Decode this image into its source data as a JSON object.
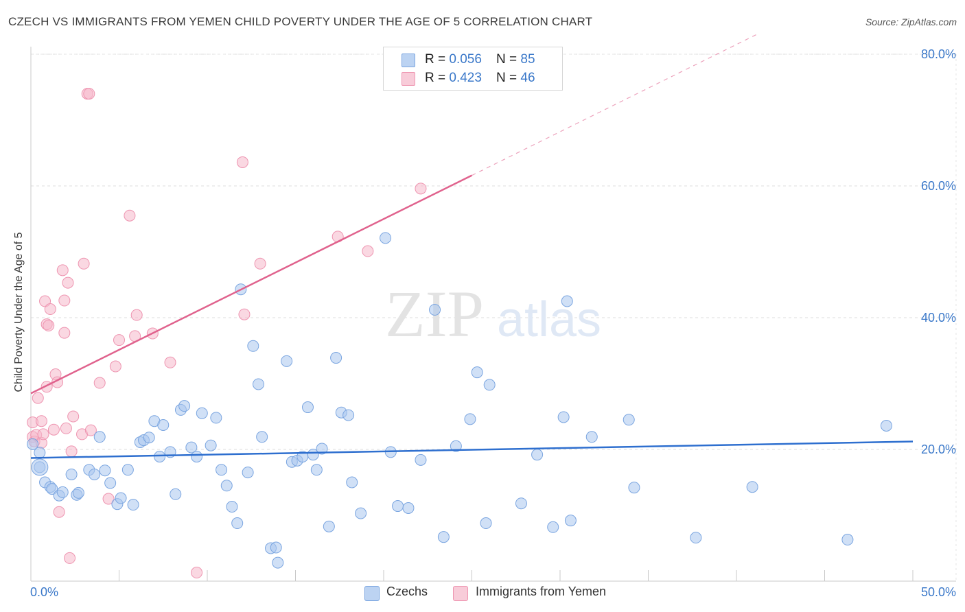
{
  "title": "CZECH VS IMMIGRANTS FROM YEMEN CHILD POVERTY UNDER THE AGE OF 5 CORRELATION CHART",
  "source": "Source: ZipAtlas.com",
  "watermark": {
    "zip": "ZIP",
    "atlas": "atlas"
  },
  "colors": {
    "czech_fill": "#a9c6ee",
    "czech_stroke": "#7aa5e0",
    "czech_line": "#2e6fcf",
    "yemen_fill": "#f5b8cb",
    "yemen_stroke": "#ee94b0",
    "yemen_line": "#e0628d",
    "axis_text": "#3a78c9",
    "grid": "#dddddd"
  },
  "legend": {
    "czech": {
      "r_label": "R = ",
      "r_value": "0.056",
      "n_label": "N = ",
      "n_value": "85"
    },
    "yemen": {
      "r_label": "R = ",
      "r_value": "0.423",
      "n_label": "N = ",
      "n_value": "46"
    }
  },
  "bottom_legend": {
    "czech": "Czechs",
    "yemen": "Immigrants from Yemen"
  },
  "chart_data": {
    "type": "scatter",
    "title": "CZECH VS IMMIGRANTS FROM YEMEN CHILD POVERTY UNDER THE AGE OF 5 CORRELATION CHART",
    "xlabel": "",
    "ylabel": "Child Poverty Under the Age of 5",
    "xlim": [
      0,
      50
    ],
    "ylim": [
      0,
      80
    ],
    "x_tick_labels": [
      "0.0%",
      "50.0%"
    ],
    "y_ticks": [
      20,
      40,
      60,
      80
    ],
    "y_tick_labels": [
      "20.0%",
      "40.0%",
      "60.0%",
      "80.0%"
    ],
    "series": [
      {
        "name": "Czechs",
        "R": 0.056,
        "N": 85,
        "trend": {
          "x": [
            0,
            50
          ],
          "y": [
            18.7,
            21.2
          ]
        },
        "points": [
          [
            0.1,
            20.8
          ],
          [
            0.5,
            19.5
          ],
          [
            0.5,
            17.3
          ],
          [
            0.8,
            15.0
          ],
          [
            1.1,
            14.3
          ],
          [
            1.2,
            14.0
          ],
          [
            1.6,
            13.0
          ],
          [
            1.8,
            13.5
          ],
          [
            2.3,
            16.2
          ],
          [
            2.6,
            13.1
          ],
          [
            2.7,
            13.4
          ],
          [
            3.3,
            16.9
          ],
          [
            3.6,
            16.2
          ],
          [
            3.9,
            21.9
          ],
          [
            4.2,
            16.8
          ],
          [
            4.5,
            14.9
          ],
          [
            4.9,
            11.7
          ],
          [
            5.1,
            12.6
          ],
          [
            5.5,
            16.9
          ],
          [
            5.8,
            11.6
          ],
          [
            6.2,
            21.1
          ],
          [
            6.4,
            21.4
          ],
          [
            6.7,
            21.8
          ],
          [
            7.0,
            24.3
          ],
          [
            7.3,
            18.9
          ],
          [
            7.5,
            23.7
          ],
          [
            7.9,
            19.6
          ],
          [
            8.2,
            13.2
          ],
          [
            8.5,
            26.0
          ],
          [
            8.7,
            26.6
          ],
          [
            9.1,
            20.3
          ],
          [
            9.4,
            18.9
          ],
          [
            9.7,
            25.5
          ],
          [
            10.2,
            20.6
          ],
          [
            10.5,
            24.8
          ],
          [
            10.8,
            16.9
          ],
          [
            11.1,
            14.5
          ],
          [
            11.4,
            11.3
          ],
          [
            11.7,
            8.8
          ],
          [
            11.9,
            44.3
          ],
          [
            12.3,
            16.5
          ],
          [
            12.6,
            35.7
          ],
          [
            12.9,
            29.9
          ],
          [
            13.1,
            21.9
          ],
          [
            13.6,
            5.0
          ],
          [
            13.9,
            5.1
          ],
          [
            14.0,
            2.8
          ],
          [
            14.5,
            33.4
          ],
          [
            14.8,
            18.1
          ],
          [
            15.1,
            18.3
          ],
          [
            15.4,
            18.9
          ],
          [
            15.7,
            26.4
          ],
          [
            16.0,
            19.2
          ],
          [
            16.2,
            16.9
          ],
          [
            16.5,
            20.1
          ],
          [
            16.9,
            8.3
          ],
          [
            17.3,
            33.9
          ],
          [
            17.6,
            25.6
          ],
          [
            18.0,
            25.2
          ],
          [
            18.2,
            15.0
          ],
          [
            18.7,
            10.3
          ],
          [
            20.1,
            52.1
          ],
          [
            20.4,
            19.6
          ],
          [
            20.8,
            11.4
          ],
          [
            21.4,
            11.1
          ],
          [
            22.1,
            18.4
          ],
          [
            22.9,
            41.2
          ],
          [
            23.4,
            6.7
          ],
          [
            24.1,
            20.5
          ],
          [
            24.9,
            24.6
          ],
          [
            25.3,
            31.7
          ],
          [
            25.8,
            8.8
          ],
          [
            26.0,
            29.8
          ],
          [
            27.8,
            11.8
          ],
          [
            28.7,
            19.2
          ],
          [
            29.6,
            8.2
          ],
          [
            30.2,
            24.9
          ],
          [
            30.4,
            42.5
          ],
          [
            30.6,
            9.2
          ],
          [
            31.8,
            21.9
          ],
          [
            33.9,
            24.5
          ],
          [
            34.2,
            14.2
          ],
          [
            37.7,
            6.6
          ],
          [
            40.9,
            14.3
          ],
          [
            46.3,
            6.3
          ],
          [
            48.5,
            23.6
          ]
        ]
      },
      {
        "name": "Immigrants from Yemen",
        "R": 0.423,
        "N": 46,
        "trend": {
          "x": [
            0,
            25
          ],
          "y": [
            28.5,
            61.6
          ]
        },
        "trend_dashed": {
          "x": [
            25,
            41.3
          ],
          "y": [
            61.6,
            83.2
          ]
        },
        "points": [
          [
            0.1,
            24.1
          ],
          [
            0.1,
            21.9
          ],
          [
            0.2,
            21.2
          ],
          [
            0.3,
            22.2
          ],
          [
            0.4,
            27.8
          ],
          [
            0.6,
            24.3
          ],
          [
            0.6,
            21.0
          ],
          [
            0.7,
            22.3
          ],
          [
            0.8,
            42.5
          ],
          [
            0.9,
            29.5
          ],
          [
            0.9,
            39.0
          ],
          [
            1.0,
            38.8
          ],
          [
            1.1,
            41.3
          ],
          [
            1.3,
            23.0
          ],
          [
            1.4,
            31.4
          ],
          [
            1.5,
            30.2
          ],
          [
            1.6,
            10.5
          ],
          [
            1.8,
            47.2
          ],
          [
            1.9,
            42.6
          ],
          [
            1.9,
            37.7
          ],
          [
            2.0,
            23.2
          ],
          [
            2.1,
            45.3
          ],
          [
            2.2,
            3.5
          ],
          [
            2.3,
            19.7
          ],
          [
            2.4,
            25.0
          ],
          [
            2.9,
            22.3
          ],
          [
            3.0,
            48.2
          ],
          [
            3.2,
            74.0
          ],
          [
            3.3,
            74.0
          ],
          [
            3.4,
            22.9
          ],
          [
            3.9,
            30.1
          ],
          [
            4.4,
            12.5
          ],
          [
            4.8,
            32.6
          ],
          [
            5.0,
            36.6
          ],
          [
            5.6,
            55.5
          ],
          [
            5.9,
            37.2
          ],
          [
            6.0,
            40.4
          ],
          [
            6.9,
            37.6
          ],
          [
            7.9,
            33.2
          ],
          [
            9.4,
            1.3
          ],
          [
            12.0,
            63.6
          ],
          [
            12.1,
            40.5
          ],
          [
            13.0,
            48.2
          ],
          [
            17.4,
            52.3
          ],
          [
            19.1,
            50.1
          ],
          [
            22.1,
            59.6
          ]
        ]
      }
    ]
  }
}
